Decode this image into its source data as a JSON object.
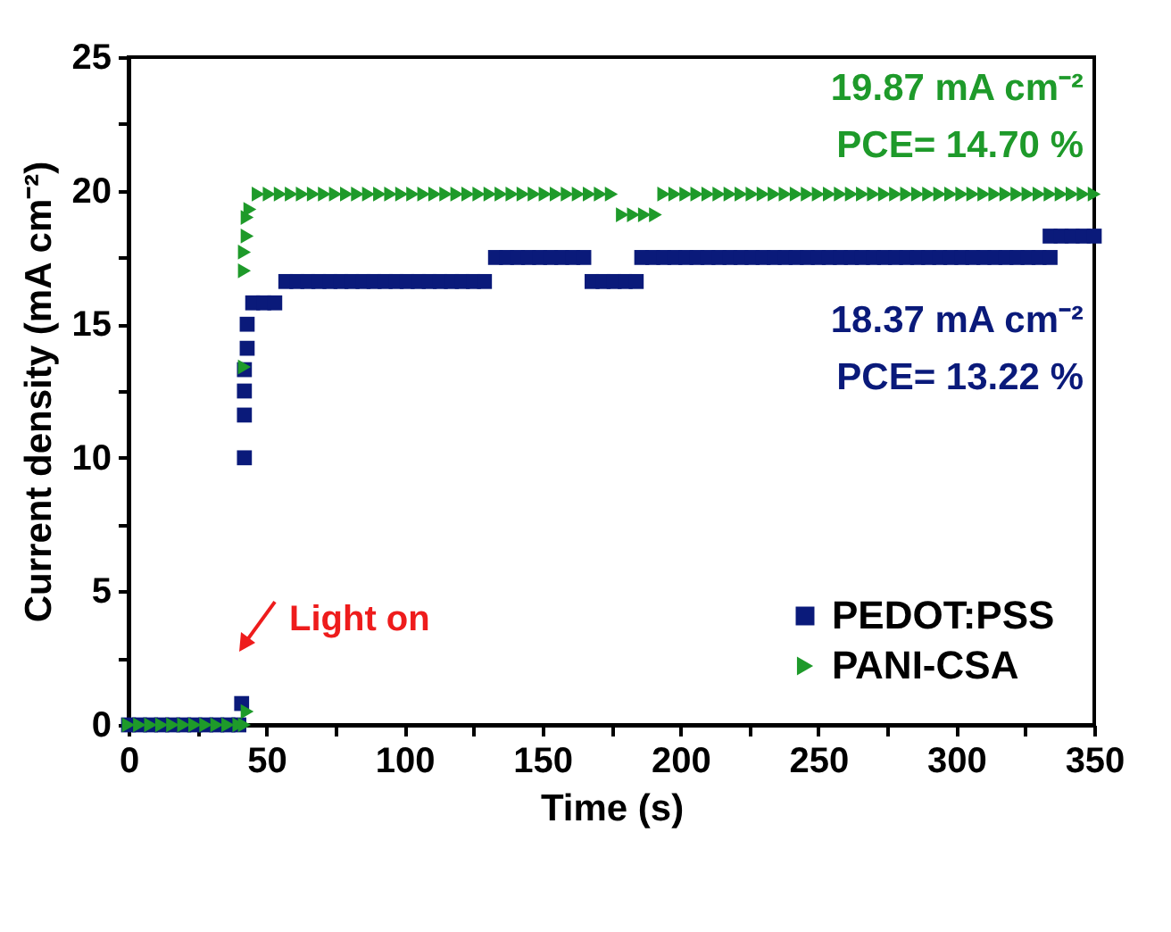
{
  "chart_data": {
    "type": "scatter",
    "xlabel": "Time (s)",
    "ylabel": "Current density (mA cm⁻²)",
    "xlim": [
      0,
      350
    ],
    "ylim": [
      0,
      25
    ],
    "xticks": [
      0,
      {
        "value": 25,
        "label": null
      },
      50,
      {
        "value": 75,
        "label": null
      },
      100,
      {
        "value": 125,
        "label": null
      },
      150,
      {
        "value": 175,
        "label": null
      },
      200,
      {
        "value": 225,
        "label": null
      },
      250,
      {
        "value": 275,
        "label": null
      },
      300,
      {
        "value": 325,
        "label": null
      },
      350
    ],
    "yticks": [
      0,
      {
        "value": 2.5,
        "label": null
      },
      5,
      {
        "value": 7.5,
        "label": null
      },
      10,
      {
        "value": 12.5,
        "label": null
      },
      15,
      {
        "value": 17.5,
        "label": null
      },
      20,
      {
        "value": 22.5,
        "label": null
      },
      25
    ],
    "grid": false,
    "legend": "bottom right",
    "series": [
      {
        "name": "PEDOT:PSS",
        "color": "#0a1a7a",
        "marker": "square",
        "x": [
          0,
          4,
          8,
          12,
          16,
          20,
          24,
          28,
          32,
          36,
          40,
          41,
          42,
          42,
          42,
          42,
          43,
          43,
          45,
          49,
          53,
          57,
          61,
          65,
          69,
          73,
          77,
          81,
          85,
          89,
          93,
          97,
          101,
          105,
          109,
          113,
          117,
          121,
          125,
          129,
          133,
          137,
          141,
          145,
          149,
          153,
          157,
          161,
          165,
          168,
          172,
          176,
          180,
          184,
          186,
          190,
          194,
          198,
          202,
          206,
          210,
          214,
          218,
          222,
          226,
          230,
          234,
          238,
          242,
          246,
          250,
          254,
          258,
          262,
          266,
          270,
          274,
          278,
          282,
          286,
          290,
          294,
          298,
          302,
          306,
          310,
          314,
          318,
          322,
          326,
          330,
          334,
          334,
          338,
          342,
          346,
          350
        ],
        "values": [
          0,
          0,
          0,
          0,
          0,
          0,
          0,
          0,
          0,
          0,
          0,
          0.8,
          10,
          11.6,
          12.5,
          13.3,
          14.1,
          15.0,
          15.8,
          15.8,
          15.8,
          16.6,
          16.6,
          16.6,
          16.6,
          16.6,
          16.6,
          16.6,
          16.6,
          16.6,
          16.6,
          16.6,
          16.6,
          16.6,
          16.6,
          16.6,
          16.6,
          16.6,
          16.6,
          16.6,
          17.5,
          17.5,
          17.5,
          17.5,
          17.5,
          17.5,
          17.5,
          17.5,
          17.5,
          16.6,
          16.6,
          16.6,
          16.6,
          16.6,
          17.5,
          17.5,
          17.5,
          17.5,
          17.5,
          17.5,
          17.5,
          17.5,
          17.5,
          17.5,
          17.5,
          17.5,
          17.5,
          17.5,
          17.5,
          17.5,
          17.5,
          17.5,
          17.5,
          17.5,
          17.5,
          17.5,
          17.5,
          17.5,
          17.5,
          17.5,
          17.5,
          17.5,
          17.5,
          17.5,
          17.5,
          17.5,
          17.5,
          17.5,
          17.5,
          17.5,
          17.5,
          17.5,
          18.3,
          18.3,
          18.3,
          18.3,
          18.3
        ]
      },
      {
        "name": "PANI-CSA",
        "color": "#1e9a2a",
        "marker": "triangle-right",
        "x": [
          0,
          4,
          8,
          12,
          16,
          20,
          24,
          28,
          32,
          36,
          40,
          42,
          43,
          42,
          42,
          42,
          43,
          43,
          44,
          47,
          51,
          55,
          59,
          63,
          67,
          71,
          75,
          79,
          83,
          87,
          91,
          95,
          99,
          103,
          107,
          111,
          115,
          119,
          123,
          127,
          131,
          135,
          139,
          143,
          147,
          151,
          155,
          159,
          163,
          167,
          171,
          175,
          179,
          183,
          187,
          191,
          194,
          198,
          202,
          206,
          210,
          214,
          218,
          222,
          226,
          230,
          234,
          238,
          242,
          246,
          250,
          254,
          258,
          262,
          266,
          270,
          274,
          278,
          282,
          286,
          290,
          294,
          298,
          302,
          306,
          310,
          314,
          318,
          322,
          326,
          330,
          334,
          338,
          342,
          346,
          350
        ],
        "values": [
          0,
          0,
          0,
          0,
          0,
          0,
          0,
          0,
          0,
          0,
          0,
          0,
          0.5,
          13.4,
          17.0,
          17.7,
          18.3,
          19.0,
          19.3,
          19.87,
          19.87,
          19.87,
          19.87,
          19.87,
          19.87,
          19.87,
          19.87,
          19.87,
          19.87,
          19.87,
          19.87,
          19.87,
          19.87,
          19.87,
          19.87,
          19.87,
          19.87,
          19.87,
          19.87,
          19.87,
          19.87,
          19.87,
          19.87,
          19.87,
          19.87,
          19.87,
          19.87,
          19.87,
          19.87,
          19.87,
          19.87,
          19.87,
          19.1,
          19.1,
          19.1,
          19.1,
          19.87,
          19.87,
          19.87,
          19.87,
          19.87,
          19.87,
          19.87,
          19.87,
          19.87,
          19.87,
          19.87,
          19.87,
          19.87,
          19.87,
          19.87,
          19.87,
          19.87,
          19.87,
          19.87,
          19.87,
          19.87,
          19.87,
          19.87,
          19.87,
          19.87,
          19.87,
          19.87,
          19.87,
          19.87,
          19.87,
          19.87,
          19.87,
          19.87,
          19.87,
          19.87,
          19.87,
          19.87,
          19.87,
          19.87,
          19.87
        ]
      }
    ],
    "annotations": [
      "19.87 mA cm⁻²",
      "PCE= 14.70 %",
      "18.37 mA cm⁻²",
      "PCE= 13.22 %",
      {
        "text": "Light on",
        "x": 44,
        "y": 1
      }
    ]
  }
}
